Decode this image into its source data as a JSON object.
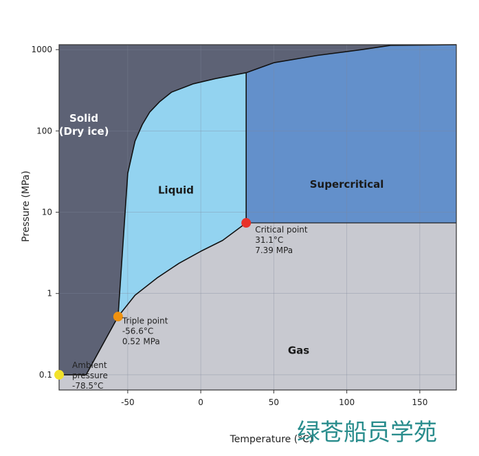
{
  "chart_data": {
    "type": "area",
    "xlabel": "Temperature (°C)",
    "ylabel": "Pressure (MPa)",
    "xlim": [
      -97,
      175
    ],
    "ylim": [
      0.065,
      1150
    ],
    "y_scale": "log",
    "x_ticks": [
      -50,
      0,
      50,
      100,
      150
    ],
    "x_tick_labels": [
      "-50",
      "0",
      "50",
      "100",
      "150"
    ],
    "y_ticks": [
      0.1,
      1,
      10,
      100,
      1000
    ],
    "y_tick_labels": [
      "0.1",
      "1",
      "10",
      "100",
      "1000"
    ],
    "grid": true,
    "regions": [
      {
        "label_lines": [
          "Solid",
          "(Dry ice)"
        ],
        "color": "#5d6275",
        "label_color": "#ffffff",
        "label_at": [
          -80,
          130
        ]
      },
      {
        "label_lines": [
          "Liquid"
        ],
        "color": "#93d3f0",
        "label_color": "#1a1a1a",
        "label_at": [
          -17,
          17
        ]
      },
      {
        "label_lines": [
          "Supercritical"
        ],
        "color": "#6390cb",
        "label_color": "#1a1a1a",
        "label_at": [
          100,
          20
        ]
      },
      {
        "label_lines": [
          "Gas"
        ],
        "color": "#c8c9d0",
        "label_color": "#1a1a1a",
        "label_at": [
          67,
          0.18
        ]
      }
    ],
    "curves": {
      "sublimation": [
        [
          -97,
          0.1
        ],
        [
          -78.5,
          0.1
        ],
        [
          -56.6,
          0.52
        ]
      ],
      "melting": [
        [
          -56.6,
          0.52
        ],
        [
          -50,
          30
        ],
        [
          -45,
          75
        ],
        [
          -40,
          120
        ],
        [
          -35,
          170
        ],
        [
          -28,
          230
        ],
        [
          -20,
          300
        ],
        [
          -5,
          380
        ],
        [
          10,
          440
        ],
        [
          31.1,
          520
        ]
      ],
      "vaporization": [
        [
          -56.6,
          0.52
        ],
        [
          -45,
          0.95
        ],
        [
          -30,
          1.55
        ],
        [
          -15,
          2.35
        ],
        [
          0,
          3.3
        ],
        [
          15,
          4.5
        ],
        [
          31.1,
          7.39
        ]
      ],
      "supercritical_top": [
        [
          31.1,
          520
        ],
        [
          50,
          690
        ],
        [
          80,
          850
        ],
        [
          110,
          1000
        ],
        [
          130,
          1130
        ],
        [
          175,
          1150
        ]
      ]
    },
    "points": [
      {
        "name": "Triple point",
        "lines": [
          "Triple point",
          "-56.6°C",
          "0.52 MPa"
        ],
        "x": -56.6,
        "y": 0.52,
        "color": "#f0920f"
      },
      {
        "name": "Critical point",
        "lines": [
          "Critical point",
          "31.1°C",
          "7.39 MPa"
        ],
        "x": 31.1,
        "y": 7.39,
        "color": "#e8322a"
      },
      {
        "name": "Ambient pressure",
        "lines": [
          "Ambient",
          "pressure",
          "-78.5°C"
        ],
        "x": -97,
        "y": 0.1,
        "color": "#f2e22a"
      }
    ]
  },
  "watermark": {
    "text": "绿苍船员学苑",
    "color": "#2a8d8d"
  }
}
